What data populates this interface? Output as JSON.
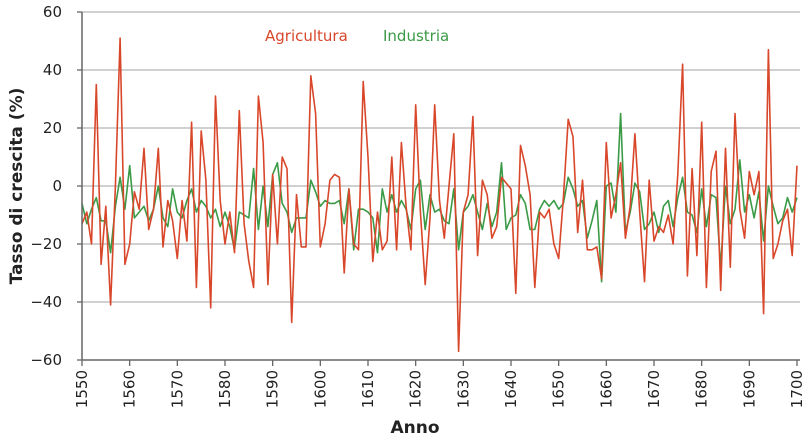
{
  "chart_data": {
    "type": "line",
    "title": "",
    "xlabel": "Anno",
    "ylabel": "Tasso di crescita (%)",
    "xlim": [
      1550,
      1700
    ],
    "ylim": [
      -60,
      60
    ],
    "yticks": [
      "60",
      "40",
      "20",
      "0",
      "−20",
      "−40",
      "−60"
    ],
    "ytick_values": [
      60,
      40,
      20,
      0,
      -20,
      -40,
      -60
    ],
    "xticks": [
      "1550",
      "1560",
      "1570",
      "1580",
      "1590",
      "1600",
      "1610",
      "1620",
      "1630",
      "1640",
      "1650",
      "1660",
      "1670",
      "1680",
      "1690",
      "1700"
    ],
    "grid": "horizontal",
    "legend_placement": "top-center",
    "x_start": 1550,
    "x_step": 1,
    "series": [
      {
        "name": "Agricultura",
        "color": "#d9472b",
        "values": [
          -13,
          -9,
          -20,
          35,
          -27,
          -7,
          -41,
          0,
          51,
          -27,
          -20,
          -2,
          -8,
          13,
          -15,
          -8,
          13,
          -21,
          -5,
          -12,
          -25,
          -5,
          -19,
          22,
          -35,
          19,
          2,
          -42,
          31,
          -5,
          -20,
          -9,
          -23,
          26,
          -13,
          -26,
          -35,
          31,
          15,
          -34,
          4,
          -20,
          10,
          6,
          -47,
          -3,
          -21,
          -21,
          38,
          25,
          -21,
          -13,
          2,
          4,
          3,
          -30,
          -1,
          -20,
          -22,
          36,
          10,
          -26,
          -9,
          -22,
          -19,
          10,
          -22,
          15,
          -7,
          -22,
          28,
          -9,
          -34,
          -11,
          28,
          -5,
          -18,
          0,
          18,
          -57,
          -9,
          -3,
          24,
          -24,
          2,
          -3,
          -18,
          -14,
          3,
          1,
          -1,
          -37,
          14,
          7,
          -3,
          -35,
          -9,
          -11,
          -8,
          -20,
          -25,
          -4,
          23,
          17,
          -16,
          2,
          -22,
          -22,
          -21,
          -32,
          15,
          -11,
          -3,
          8,
          -18,
          -7,
          18,
          -9,
          -33,
          2,
          -19,
          -14,
          -16,
          -10,
          -20,
          4,
          42,
          -31,
          6,
          -24,
          22,
          -35,
          5,
          12,
          -36,
          13,
          -28,
          25,
          -8,
          -18,
          5,
          -3,
          5,
          -44,
          47,
          -25,
          -20,
          -12,
          -8,
          -24,
          7
        ]
      },
      {
        "name": "Industria",
        "color": "#3a9a45",
        "values": [
          -6,
          -13,
          -8,
          -4,
          -12,
          -12,
          -23,
          -7,
          3,
          -8,
          7,
          -11,
          -9,
          -7,
          -12,
          -8,
          0,
          -11,
          -14,
          -1,
          -9,
          -11,
          -5,
          -1,
          -9,
          -5,
          -7,
          -11,
          -8,
          -14,
          -9,
          -14,
          -22,
          -9,
          -10,
          -11,
          6,
          -15,
          0,
          -14,
          4,
          8,
          -6,
          -9,
          -16,
          -11,
          -11,
          -11,
          2,
          -2,
          -7,
          -5,
          -6,
          -6,
          -5,
          -13,
          -1,
          -22,
          -8,
          -8,
          -9,
          -11,
          -23,
          -1,
          -9,
          -3,
          -9,
          -5,
          -8,
          -15,
          -1,
          2,
          -15,
          -3,
          -9,
          -8,
          -12,
          -13,
          -1,
          -22,
          -9,
          -7,
          -3,
          -9,
          -15,
          -6,
          -14,
          -9,
          8,
          -15,
          -11,
          -10,
          -3,
          -6,
          -15,
          -15,
          -8,
          -5,
          -7,
          -5,
          -8,
          -6,
          3,
          -1,
          -7,
          -5,
          -18,
          -12,
          -5,
          -33,
          0,
          1,
          -9,
          25,
          -16,
          -9,
          1,
          -2,
          -15,
          -13,
          -9,
          -16,
          -7,
          -5,
          -14,
          -4,
          3,
          -9,
          -10,
          -16,
          -1,
          -14,
          -3,
          -4,
          -28,
          0,
          -13,
          -8,
          9,
          -9,
          -3,
          -11,
          -2,
          -19,
          0,
          -7,
          -13,
          -11,
          -4,
          -9,
          -4
        ]
      }
    ]
  }
}
